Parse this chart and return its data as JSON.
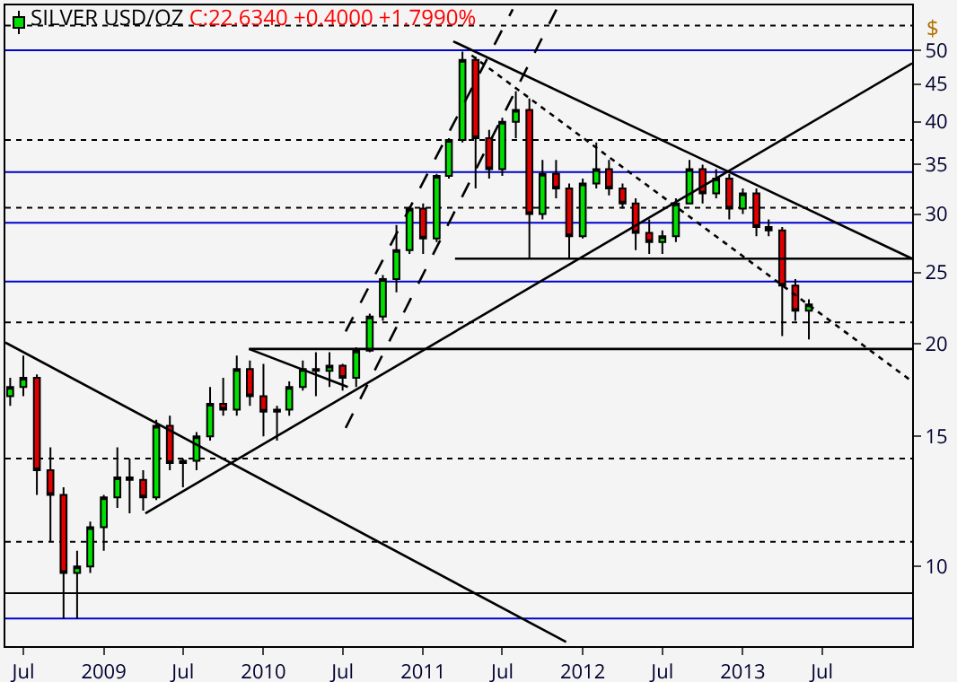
{
  "chart_data": {
    "type": "candlestick",
    "title": "SILVER USD/OZ",
    "subtitle": "C:22.6340 +0.4000 +1.7990%",
    "ylabel": "$",
    "log": true,
    "grid": false,
    "x": [
      "2008-06",
      "2008-07",
      "2008-08",
      "2008-09",
      "2008-10",
      "2008-11",
      "2008-12",
      "2009-01",
      "2009-02",
      "2009-03",
      "2009-04",
      "2009-05",
      "2009-06",
      "2009-07",
      "2009-08",
      "2009-09",
      "2009-10",
      "2009-11",
      "2009-12",
      "2010-01",
      "2010-02",
      "2010-03",
      "2010-04",
      "2010-05",
      "2010-06",
      "2010-07",
      "2010-08",
      "2010-09",
      "2010-10",
      "2010-11",
      "2010-12",
      "2011-01",
      "2011-02",
      "2011-03",
      "2011-04",
      "2011-05",
      "2011-06",
      "2011-07",
      "2011-08",
      "2011-09",
      "2011-10",
      "2011-11",
      "2011-12",
      "2012-01",
      "2012-02",
      "2012-03",
      "2012-04",
      "2012-05",
      "2012-06",
      "2012-07",
      "2012-08",
      "2012-09",
      "2012-10",
      "2012-11",
      "2012-12",
      "2013-01",
      "2013-02",
      "2013-03",
      "2013-04",
      "2013-05",
      "2013-06"
    ],
    "ohlc": [
      [
        17.0,
        18.0,
        16.5,
        17.5
      ],
      [
        17.5,
        19.3,
        17.0,
        18.0
      ],
      [
        18.0,
        18.2,
        12.5,
        13.5
      ],
      [
        13.5,
        14.5,
        10.8,
        12.5
      ],
      [
        12.5,
        12.8,
        8.5,
        9.8
      ],
      [
        9.8,
        10.5,
        8.5,
        10.0
      ],
      [
        10.0,
        11.5,
        9.8,
        11.3
      ],
      [
        11.3,
        12.5,
        10.5,
        12.4
      ],
      [
        12.4,
        14.5,
        12.0,
        13.2
      ],
      [
        13.2,
        14.0,
        11.8,
        13.1
      ],
      [
        13.1,
        13.5,
        11.9,
        12.4
      ],
      [
        12.4,
        15.8,
        12.3,
        15.5
      ],
      [
        15.5,
        16.0,
        13.5,
        13.8
      ],
      [
        13.8,
        14.0,
        12.8,
        13.9
      ],
      [
        13.9,
        15.2,
        13.5,
        15.0
      ],
      [
        15.0,
        17.5,
        14.8,
        16.6
      ],
      [
        16.6,
        18.0,
        16.0,
        16.3
      ],
      [
        16.3,
        19.3,
        16.0,
        18.5
      ],
      [
        18.5,
        19.0,
        16.5,
        17.0
      ],
      [
        17.0,
        18.8,
        15.0,
        16.2
      ],
      [
        16.2,
        16.5,
        14.8,
        16.3
      ],
      [
        16.3,
        17.8,
        16.0,
        17.5
      ],
      [
        17.5,
        19.0,
        17.3,
        18.5
      ],
      [
        18.5,
        19.5,
        17.0,
        18.4
      ],
      [
        18.4,
        19.5,
        17.5,
        18.7
      ],
      [
        18.7,
        18.8,
        17.3,
        18.0
      ],
      [
        18.0,
        19.8,
        17.5,
        19.6
      ],
      [
        19.6,
        22.0,
        19.5,
        21.8
      ],
      [
        21.8,
        24.8,
        21.5,
        24.5
      ],
      [
        24.5,
        29.0,
        23.5,
        26.8
      ],
      [
        26.8,
        30.7,
        26.5,
        30.5
      ],
      [
        30.5,
        31.0,
        26.5,
        27.8
      ],
      [
        27.8,
        34.0,
        27.5,
        33.8
      ],
      [
        33.8,
        38.0,
        33.5,
        37.8
      ],
      [
        37.8,
        49.8,
        37.5,
        48.5
      ],
      [
        48.5,
        49.0,
        32.5,
        38.0
      ],
      [
        38.0,
        39.0,
        33.5,
        34.5
      ],
      [
        34.5,
        40.5,
        33.8,
        40.0
      ],
      [
        40.0,
        44.0,
        38.0,
        41.5
      ],
      [
        41.5,
        43.0,
        26.2,
        30.0
      ],
      [
        30.0,
        35.5,
        29.5,
        34.0
      ],
      [
        34.0,
        35.5,
        31.5,
        32.5
      ],
      [
        32.5,
        33.0,
        26.2,
        28.0
      ],
      [
        28.0,
        33.5,
        27.8,
        33.0
      ],
      [
        33.0,
        37.5,
        32.5,
        34.5
      ],
      [
        34.5,
        35.5,
        31.8,
        32.5
      ],
      [
        32.5,
        33.0,
        30.5,
        31.0
      ],
      [
        31.0,
        31.5,
        26.8,
        28.3
      ],
      [
        28.3,
        29.5,
        26.5,
        27.5
      ],
      [
        27.5,
        28.5,
        26.5,
        28.0
      ],
      [
        28.0,
        31.5,
        27.5,
        31.0
      ],
      [
        31.0,
        35.5,
        31.0,
        34.5
      ],
      [
        34.5,
        35.0,
        31.0,
        32.0
      ],
      [
        32.0,
        34.5,
        31.5,
        33.5
      ],
      [
        33.5,
        34.0,
        29.5,
        30.5
      ],
      [
        30.5,
        32.5,
        30.0,
        32.0
      ],
      [
        32.0,
        32.5,
        28.0,
        28.8
      ],
      [
        28.8,
        29.5,
        28.0,
        28.5
      ],
      [
        28.5,
        28.8,
        20.5,
        24.0
      ],
      [
        24.0,
        24.5,
        21.5,
        22.2
      ],
      [
        22.2,
        23.0,
        20.3,
        22.634
      ]
    ],
    "series": [
      {
        "type": "line",
        "color": "#000000",
        "line_style": "solid",
        "x": [
          "2008-05-21",
          "2011-11-24"
        ],
        "values": [
          20.1,
          7.9
        ]
      },
      {
        "type": "line",
        "color": "#000000",
        "line_style": "solid",
        "x": [
          "2011-03-11",
          "2014-01-23"
        ],
        "values": [
          51.4,
          26.1
        ]
      },
      {
        "type": "line",
        "color": "#000000",
        "line_style": "solid",
        "x": [
          "2009-04-06",
          "2014-01-23"
        ],
        "values": [
          11.8,
          48.0
        ]
      },
      {
        "type": "line",
        "color": "#000000",
        "line_style": "dotted",
        "x": [
          "2011-04-22",
          "2014-01-23"
        ],
        "values": [
          49.2,
          17.8
        ]
      },
      {
        "type": "line",
        "color": "#000000",
        "line_style": "dashed",
        "x": [
          "2010-07-08",
          "2011-07-25"
        ],
        "values": [
          20.8,
          56.8
        ]
      },
      {
        "type": "line",
        "color": "#000000",
        "line_style": "dashed",
        "x": [
          "2010-07-08",
          "2011-11-02"
        ],
        "values": [
          15.4,
          56.8
        ]
      },
      {
        "type": "line",
        "color": "#000000",
        "line_style": "solid",
        "x": [
          "2009-11-29",
          "2010-07-13"
        ],
        "values": [
          19.7,
          17.5
        ]
      },
      {
        "type": "line",
        "color": "#000000",
        "line_style": "solid",
        "x": [
          "2009-11-29",
          "2014-01-23"
        ],
        "values": [
          19.7,
          19.7
        ]
      },
      {
        "type": "line",
        "color": "#000000",
        "line_style": "solid",
        "x": [
          "2011-03-15",
          "2014-01-23"
        ],
        "values": [
          26.1,
          26.1
        ]
      }
    ],
    "ref_lines": [
      {
        "axis": "y",
        "value": 54.0,
        "color": "#000000",
        "line_style": "dotted"
      },
      {
        "axis": "y",
        "value": 37.8,
        "color": "#000000",
        "line_style": "dotted"
      },
      {
        "axis": "y",
        "value": 30.6,
        "color": "#000000",
        "line_style": "dotted"
      },
      {
        "axis": "y",
        "value": 21.4,
        "color": "#000000",
        "line_style": "dotted"
      },
      {
        "axis": "y",
        "value": 14.0,
        "color": "#000000",
        "line_style": "dotted"
      },
      {
        "axis": "y",
        "value": 10.8,
        "color": "#000000",
        "line_style": "dotted"
      },
      {
        "axis": "y",
        "value": 50,
        "color": "#0000cc",
        "line_style": "solid"
      },
      {
        "axis": "y",
        "value": 34.2,
        "color": "#0000cc",
        "line_style": "solid"
      },
      {
        "axis": "y",
        "value": 29.2,
        "color": "#0000cc",
        "line_style": "solid"
      },
      {
        "axis": "y",
        "value": 24.3,
        "color": "#0000cc",
        "line_style": "solid"
      },
      {
        "axis": "y",
        "value": 8.5,
        "color": "#0000cc",
        "line_style": "solid"
      },
      {
        "axis": "y",
        "value": 9.2,
        "color": "#000000",
        "line_style": "solid"
      }
    ],
    "xlim": [
      "2008-05-21",
      "2014-01-23"
    ],
    "xticks": [
      {
        "value": "2008-07-01",
        "label": "Jul"
      },
      {
        "value": "2009-01-01",
        "label": "2009"
      },
      {
        "value": "2009-07-01",
        "label": "Jul"
      },
      {
        "value": "2010-01-01",
        "label": "2010"
      },
      {
        "value": "2010-07-01",
        "label": "Jul"
      },
      {
        "value": "2011-01-01",
        "label": "2011"
      },
      {
        "value": "2011-07-01",
        "label": "Jul"
      },
      {
        "value": "2012-01-01",
        "label": "2012"
      },
      {
        "value": "2012-07-01",
        "label": "Jul"
      },
      {
        "value": "2013-01-01",
        "label": "2013"
      },
      {
        "value": "2013-07-01",
        "label": "Jul"
      }
    ],
    "ylim": [
      7.8,
      57.5
    ],
    "yticks": [
      10,
      15,
      20,
      25,
      30,
      35,
      40,
      45,
      50
    ]
  }
}
